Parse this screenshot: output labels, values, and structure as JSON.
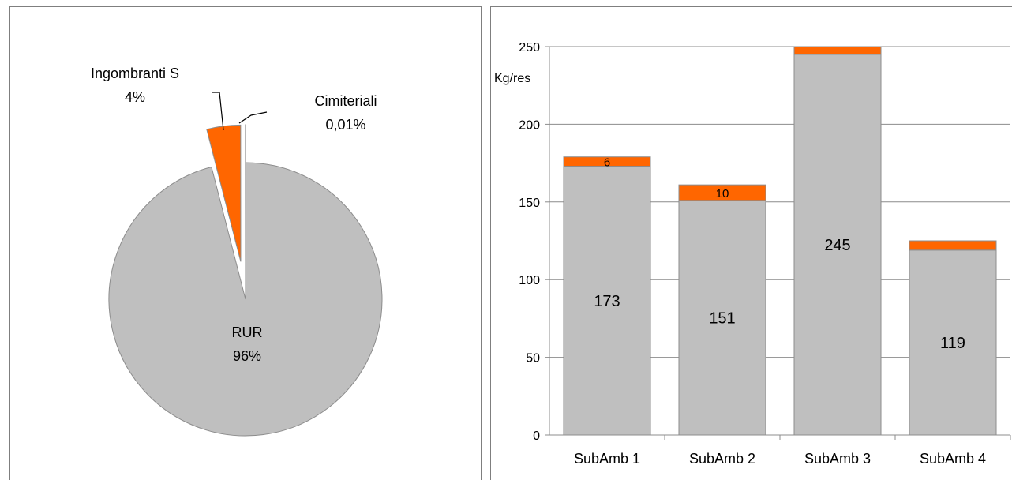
{
  "chart_data": [
    {
      "type": "pie",
      "title": "",
      "slices": [
        {
          "name": "RUR",
          "label": "RUR",
          "percent_label": "96%",
          "value": 96,
          "color": "#bfbfbf"
        },
        {
          "name": "Ingombranti S",
          "label": "Ingombranti S",
          "percent_label": "4%",
          "value": 4,
          "color": "#ff6600"
        },
        {
          "name": "Cimiteriali",
          "label": "Cimiteriali",
          "percent_label": "0,01%",
          "value": 0.01,
          "color": "#ff6600"
        }
      ]
    },
    {
      "type": "bar",
      "stacked": true,
      "title": "",
      "ylabel": "Kg/res",
      "ylim": [
        0,
        250
      ],
      "yticks": [
        0,
        50,
        100,
        150,
        200,
        250
      ],
      "grid": true,
      "categories": [
        "SubAmb 1",
        "SubAmb 2",
        "SubAmb 3",
        "SubAmb 4"
      ],
      "series": [
        {
          "values": [
            173,
            151,
            245,
            119
          ],
          "labels": [
            "173",
            "151",
            "245",
            "119"
          ],
          "color": "#bfbfbf"
        },
        {
          "values": [
            6,
            10,
            5,
            6
          ],
          "labels": [
            "6",
            "10",
            "",
            ""
          ],
          "color": "#ff6600"
        }
      ]
    }
  ]
}
